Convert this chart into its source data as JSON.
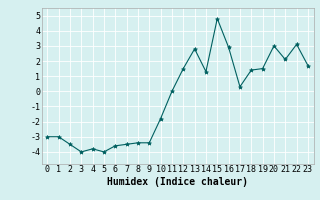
{
  "x": [
    0,
    1,
    2,
    3,
    4,
    5,
    6,
    7,
    8,
    9,
    10,
    11,
    12,
    13,
    14,
    15,
    16,
    17,
    18,
    19,
    20,
    21,
    22,
    23
  ],
  "y": [
    -3.0,
    -3.0,
    -3.5,
    -4.0,
    -3.8,
    -4.0,
    -3.6,
    -3.5,
    -3.4,
    -3.4,
    -1.8,
    0.0,
    1.5,
    2.8,
    1.3,
    4.8,
    2.9,
    0.3,
    1.4,
    1.5,
    3.0,
    2.1,
    3.1,
    1.7
  ],
  "line_color": "#006060",
  "marker": "*",
  "marker_size": 3,
  "background_color": "#d6f0f0",
  "grid_color": "#ffffff",
  "xlabel": "Humidex (Indice chaleur)",
  "xlabel_fontsize": 7,
  "tick_fontsize": 6,
  "ylim": [
    -4.8,
    5.5
  ],
  "xlim": [
    -0.5,
    23.5
  ],
  "yticks": [
    -4,
    -3,
    -2,
    -1,
    0,
    1,
    2,
    3,
    4,
    5
  ],
  "xticks": [
    0,
    1,
    2,
    3,
    4,
    5,
    6,
    7,
    8,
    9,
    10,
    11,
    12,
    13,
    14,
    15,
    16,
    17,
    18,
    19,
    20,
    21,
    22,
    23
  ]
}
